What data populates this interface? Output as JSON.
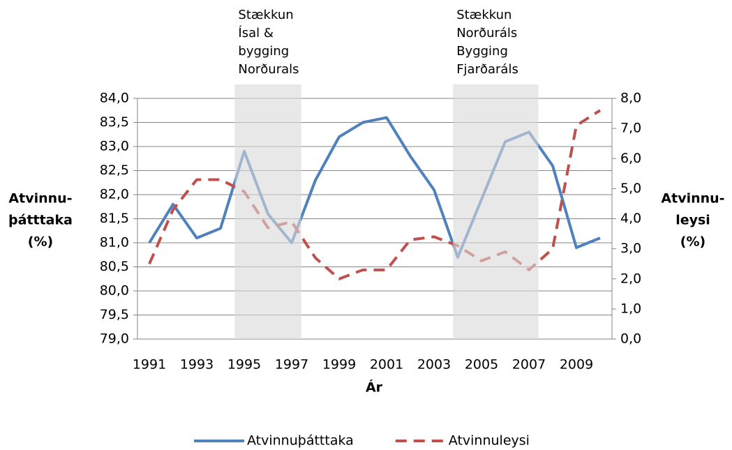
{
  "chart_data": {
    "type": "line",
    "x": [
      1991,
      1992,
      1993,
      1994,
      1995,
      1996,
      1997,
      1998,
      1999,
      2000,
      2001,
      2002,
      2003,
      2004,
      2005,
      2006,
      2007,
      2008,
      2009,
      2010
    ],
    "xlim": [
      1990.5,
      2010.5
    ],
    "xticks": [
      1991,
      1993,
      1995,
      1997,
      1999,
      2001,
      2003,
      2005,
      2007,
      2009
    ],
    "xlabel": "Ár",
    "ylabel": [
      "Atvinnu-",
      "þátttaka",
      "(%)"
    ],
    "y2label": [
      "Atvinnu-",
      "leysi",
      "(%)"
    ],
    "ylim": [
      79,
      84
    ],
    "yticks": [
      {
        "value": 79,
        "label": "79,0"
      },
      {
        "value": 79.5,
        "label": "79,5"
      },
      {
        "value": 80,
        "label": "80,0"
      },
      {
        "value": 80.5,
        "label": "80,5"
      },
      {
        "value": 81,
        "label": "81,0"
      },
      {
        "value": 81.5,
        "label": "81,5"
      },
      {
        "value": 82,
        "label": "82,0"
      },
      {
        "value": 82.5,
        "label": "82,5"
      },
      {
        "value": 83,
        "label": "83,0"
      },
      {
        "value": 83.5,
        "label": "83,5"
      },
      {
        "value": 84,
        "label": "84,0"
      }
    ],
    "y2lim": [
      0,
      8
    ],
    "y2ticks": [
      {
        "value": 0,
        "label": "0,0"
      },
      {
        "value": 1,
        "label": "1,0"
      },
      {
        "value": 2,
        "label": "2,0"
      },
      {
        "value": 3,
        "label": "3,0"
      },
      {
        "value": 4,
        "label": "4,0"
      },
      {
        "value": 5,
        "label": "5,0"
      },
      {
        "value": 6,
        "label": "6,0"
      },
      {
        "value": 7,
        "label": "7,0"
      },
      {
        "value": 8,
        "label": "8,0"
      }
    ],
    "grid": true,
    "legend": "bottom",
    "series": [
      {
        "name": "Atvinnuþátttaka",
        "color": "#4f81bd",
        "dashed": false,
        "values": [
          81.0,
          81.8,
          81.1,
          81.3,
          82.9,
          81.6,
          81.0,
          82.3,
          83.2,
          83.5,
          83.6,
          82.8,
          82.1,
          80.7,
          81.9,
          83.1,
          83.3,
          82.6,
          80.9,
          81.1
        ]
      },
      {
        "name": "Atvinnuleysi",
        "color": "#c0504d",
        "dashed": true,
        "axis": "y2",
        "values": [
          2.5,
          4.3,
          5.3,
          5.3,
          4.9,
          3.7,
          3.9,
          2.7,
          2.0,
          2.3,
          2.3,
          3.3,
          3.4,
          3.1,
          2.6,
          2.9,
          2.3,
          3.0,
          7.1,
          7.6
        ]
      }
    ],
    "band_color": "#d9d9d9",
    "bands": [
      {
        "x": [
          1994.6,
          1997.4
        ],
        "label": [
          "Stækkun",
          "Ísal &",
          "bygging",
          "Norðurals"
        ]
      },
      {
        "x": [
          2003.8,
          2007.4
        ],
        "label": [
          "Stækkun",
          "Norðuráls",
          "Bygging",
          "Fjarðaráls"
        ]
      }
    ]
  }
}
